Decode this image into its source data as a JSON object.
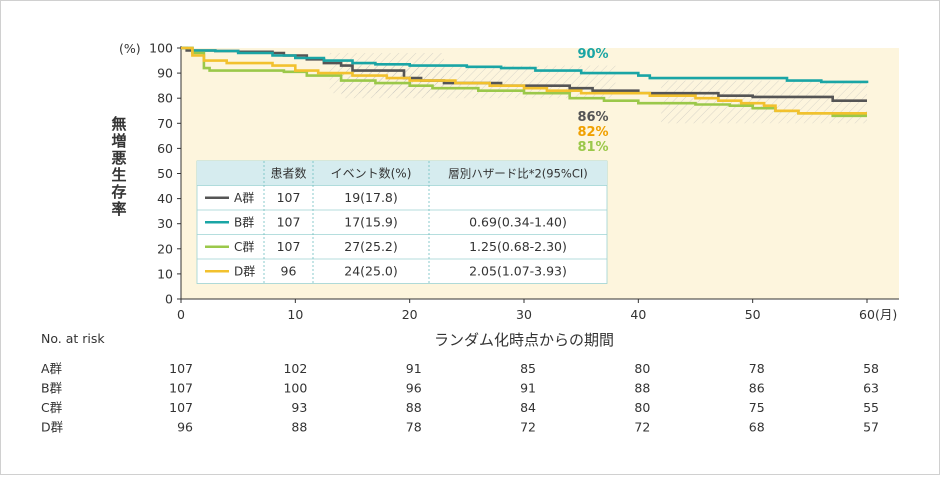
{
  "chart_data": {
    "type": "line",
    "step": true,
    "y_axis_label": "無増悪生存率",
    "y_unit_label": "(%)",
    "x_axis_label": "ランダム化時点からの期間",
    "x_unit_label": "(月)",
    "xlim": [
      0,
      60
    ],
    "ylim": [
      0,
      100
    ],
    "x_ticks": [
      0,
      10,
      20,
      30,
      40,
      50,
      60
    ],
    "y_ticks": [
      0,
      10,
      20,
      30,
      40,
      50,
      60,
      70,
      80,
      90,
      100
    ],
    "plot_background": "#fdf5dd",
    "series": [
      {
        "name": "A群",
        "color": "#555555",
        "points": [
          [
            0,
            100
          ],
          [
            0.5,
            99
          ],
          [
            1.5,
            99
          ],
          [
            3,
            98.8
          ],
          [
            5,
            98.5
          ],
          [
            8,
            98
          ],
          [
            9,
            97
          ],
          [
            11,
            95.5
          ],
          [
            12.5,
            94
          ],
          [
            14,
            93
          ],
          [
            15,
            91
          ],
          [
            19,
            91
          ],
          [
            19.5,
            88
          ],
          [
            21,
            87
          ],
          [
            23,
            86
          ],
          [
            28,
            85
          ],
          [
            32,
            85
          ],
          [
            34,
            84
          ],
          [
            36,
            83
          ],
          [
            40,
            82
          ],
          [
            47,
            81
          ],
          [
            50,
            80.5
          ],
          [
            55,
            80.5
          ],
          [
            56,
            80.5
          ],
          [
            57,
            79
          ],
          [
            60,
            79
          ]
        ],
        "end_label": "86%",
        "label_color": "#555555"
      },
      {
        "name": "B群",
        "color": "#1aa5a5",
        "points": [
          [
            0,
            100
          ],
          [
            1,
            99
          ],
          [
            3,
            98.8
          ],
          [
            5,
            98
          ],
          [
            8,
            97
          ],
          [
            10,
            96
          ],
          [
            12.5,
            95
          ],
          [
            15,
            94
          ],
          [
            17,
            93.5
          ],
          [
            20,
            93
          ],
          [
            25,
            92.5
          ],
          [
            28,
            92
          ],
          [
            31,
            91
          ],
          [
            35,
            90
          ],
          [
            40,
            89
          ],
          [
            41,
            88
          ],
          [
            51,
            88
          ],
          [
            53,
            87
          ],
          [
            55,
            87
          ],
          [
            56,
            86.5
          ],
          [
            60,
            86
          ]
        ],
        "end_label": "90%",
        "label_color": "#1aa5a5"
      },
      {
        "name": "C群",
        "color": "#9bc84a",
        "points": [
          [
            0,
            100
          ],
          [
            1,
            98
          ],
          [
            2,
            92
          ],
          [
            2.5,
            91
          ],
          [
            6,
            91
          ],
          [
            9,
            90.5
          ],
          [
            11,
            89
          ],
          [
            14,
            87
          ],
          [
            17,
            86
          ],
          [
            20,
            85
          ],
          [
            22,
            84
          ],
          [
            26,
            83
          ],
          [
            30,
            82
          ],
          [
            34,
            80
          ],
          [
            37,
            79
          ],
          [
            40,
            78
          ],
          [
            45,
            77.5
          ],
          [
            48,
            77
          ],
          [
            50,
            76
          ],
          [
            52,
            75
          ],
          [
            54,
            74
          ],
          [
            57,
            73
          ],
          [
            60,
            73
          ]
        ],
        "end_label": "81%",
        "label_color": "#9bc84a"
      },
      {
        "name": "D群",
        "color": "#f2c12e",
        "points": [
          [
            0,
            100
          ],
          [
            1,
            97
          ],
          [
            2,
            95
          ],
          [
            4,
            94
          ],
          [
            8,
            93
          ],
          [
            10,
            91
          ],
          [
            12,
            90
          ],
          [
            15,
            89
          ],
          [
            18,
            88
          ],
          [
            20,
            87
          ],
          [
            24,
            86
          ],
          [
            27,
            85
          ],
          [
            30,
            84
          ],
          [
            32,
            83
          ],
          [
            35,
            82
          ],
          [
            41,
            81
          ],
          [
            45,
            80
          ],
          [
            47,
            79
          ],
          [
            49,
            78
          ],
          [
            51,
            77
          ],
          [
            52,
            75
          ],
          [
            54,
            74
          ],
          [
            60,
            74
          ]
        ],
        "end_label": "82%",
        "label_color": "#f0a000"
      }
    ],
    "legend_table": {
      "headers": [
        "",
        "患者数",
        "イベント数(%)",
        "層別ハザード比*2(95%CI)"
      ],
      "rows": [
        {
          "group": "A群",
          "n": "107",
          "events": "19(17.8)",
          "hr": ""
        },
        {
          "group": "B群",
          "n": "107",
          "events": "17(15.9)",
          "hr": "0.69(0.34-1.40)"
        },
        {
          "group": "C群",
          "n": "107",
          "events": "27(25.2)",
          "hr": "1.25(0.68-2.30)"
        },
        {
          "group": "D群",
          "n": "96",
          "events": "24(25.0)",
          "hr": "2.05(1.07-3.93)"
        }
      ]
    },
    "at_risk": {
      "title": "No. at risk",
      "times": [
        0,
        10,
        20,
        30,
        40,
        50,
        60
      ],
      "rows": [
        {
          "group": "A群",
          "values": [
            107,
            102,
            91,
            85,
            80,
            78,
            58
          ]
        },
        {
          "group": "B群",
          "values": [
            107,
            100,
            96,
            91,
            88,
            86,
            63
          ]
        },
        {
          "group": "C群",
          "values": [
            107,
            93,
            88,
            84,
            80,
            75,
            55
          ]
        },
        {
          "group": "D群",
          "values": [
            96,
            88,
            78,
            72,
            72,
            68,
            57
          ]
        }
      ]
    }
  }
}
